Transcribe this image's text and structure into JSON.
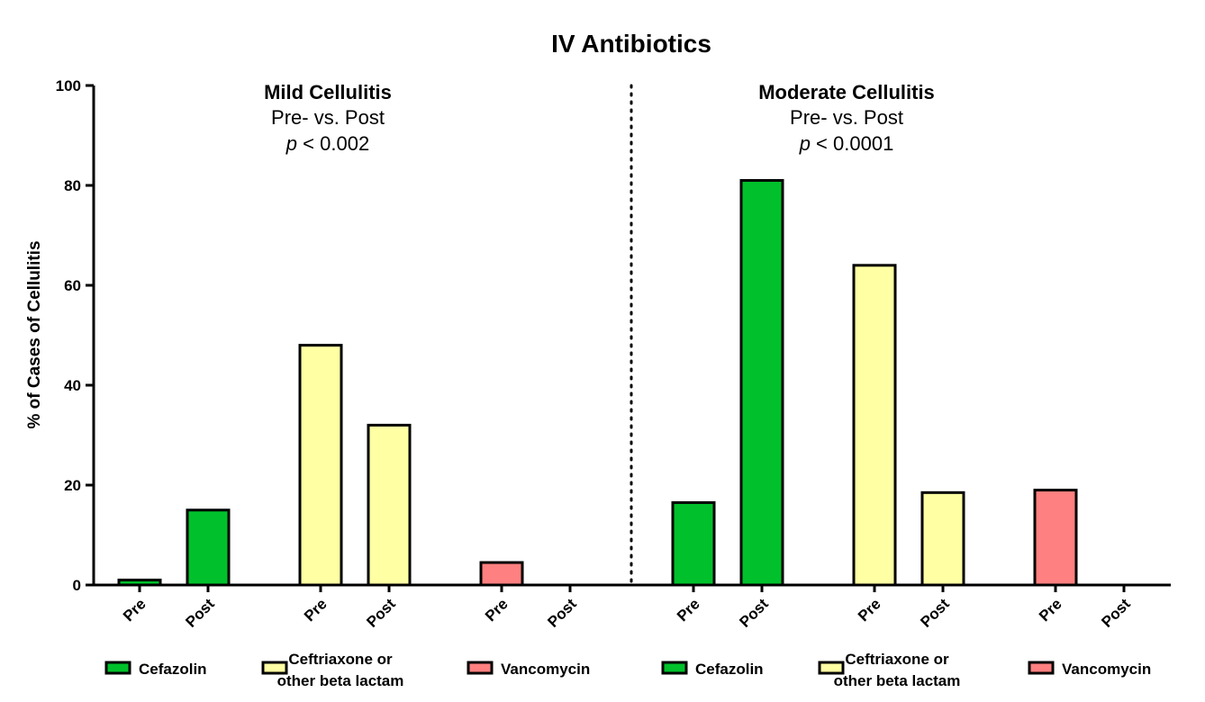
{
  "chart_data": {
    "type": "bar",
    "title": "IV Antibiotics",
    "ylabel": "% of Cases of Cellulitis",
    "xlabel": "",
    "ylim": [
      0,
      100
    ],
    "yticks": [
      "0",
      "20",
      "40",
      "60",
      "80",
      "100"
    ],
    "grid": false,
    "colors": {
      "Cefazolin": "#00c12b",
      "Ceftriaxone": "#ffffa3",
      "Vancomycin": "#ff8080",
      "outline": "#000000"
    },
    "panels": [
      {
        "title": "Mild Cellulitis",
        "subtitle": "Pre- vs. Post",
        "p_symbol": "p",
        "p_text": " < 0.002",
        "categories": [
          "Pre",
          "Post",
          "Pre",
          "Post",
          "Pre",
          "Post"
        ],
        "series": [
          {
            "name": "Cefazolin",
            "values": [
              1,
              15
            ]
          },
          {
            "name": "Ceftriaxone or other beta lactam",
            "values": [
              48,
              32
            ]
          },
          {
            "name": "Vancomycin",
            "values": [
              4.5,
              0
            ]
          }
        ]
      },
      {
        "title": "Moderate Cellulitis",
        "subtitle": "Pre- vs. Post",
        "p_symbol": "p",
        "p_text": " < 0.0001",
        "categories": [
          "Pre",
          "Post",
          "Pre",
          "Post",
          "Pre",
          "Post"
        ],
        "series": [
          {
            "name": "Cefazolin",
            "values": [
              16.5,
              81
            ]
          },
          {
            "name": "Ceftriaxone or other beta lactam",
            "values": [
              64,
              18.5
            ]
          },
          {
            "name": "Vancomycin",
            "values": [
              19,
              0
            ]
          }
        ]
      }
    ],
    "legend": {
      "placement": "bottom",
      "items": [
        {
          "name": "Cefazolin",
          "lines": [
            "Cefazolin"
          ]
        },
        {
          "name": "Ceftriaxone",
          "lines": [
            "Ceftriaxone or",
            "other beta lactam"
          ]
        },
        {
          "name": "Vancomycin",
          "lines": [
            "Vancomycin"
          ]
        }
      ]
    }
  }
}
